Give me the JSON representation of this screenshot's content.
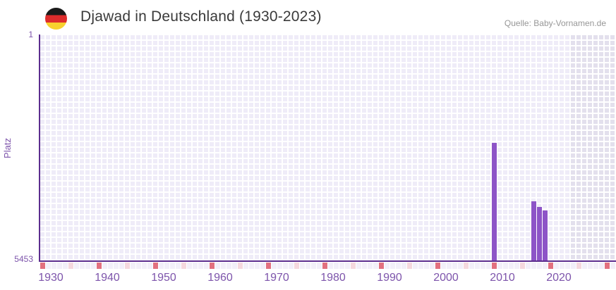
{
  "header": {
    "title": "Djawad in Deutschland (1930-2023)",
    "source": "Quelle: Baby-Vornamen.de",
    "flag_colors": {
      "top": "#1a1a1a",
      "middle": "#dd2c2c",
      "bottom": "#f8d12e"
    }
  },
  "chart_data": {
    "type": "bar",
    "title": "Djawad in Deutschland (1930-2023)",
    "ylabel": "Platz",
    "y_axis": {
      "top_tick": "1",
      "bottom_tick": "5453",
      "min": 1,
      "max": 5453,
      "inverted": true
    },
    "x_axis": {
      "min_year": 1930,
      "max_year": 2023,
      "tick_labels": [
        "1930",
        "1940",
        "1950",
        "1960",
        "1970",
        "1980",
        "1990",
        "2000",
        "2010",
        "2020"
      ],
      "decade_tick_color": "#e2707f",
      "half_decade_tick_color": "#f5d8de",
      "base_tick_color": "#f2eff9"
    },
    "points": [
      {
        "year": 2010,
        "rank": 2610
      },
      {
        "year": 2017,
        "rank": 4030
      },
      {
        "year": 2018,
        "rank": 4160
      },
      {
        "year": 2019,
        "rank": 4240
      }
    ],
    "colors": {
      "bar": "#8d54c7",
      "axis": "#5c2d8e",
      "label": "#7d54ab",
      "grid_cell_past": "#efecf8",
      "grid_cell_future": "#e3e0ed",
      "grid_line": "#ffffff"
    }
  }
}
